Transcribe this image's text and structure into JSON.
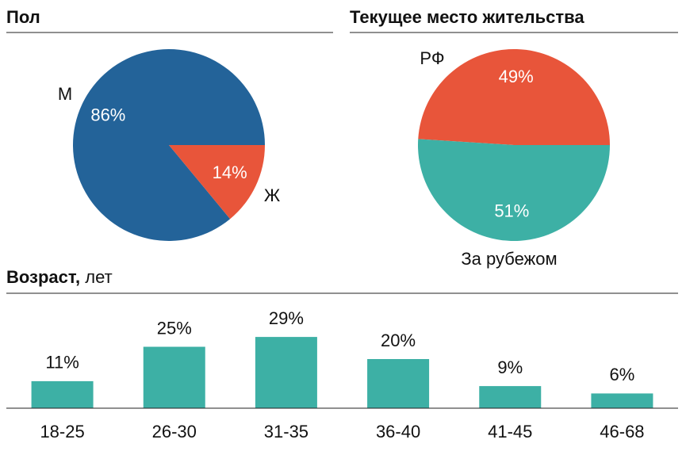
{
  "chart_data": [
    {
      "type": "pie",
      "title": "Пол",
      "categories": [
        "М",
        "Ж"
      ],
      "values": [
        86,
        14
      ],
      "value_labels": [
        "86%",
        "14%"
      ],
      "colors": [
        "#236399",
        "#e8553a"
      ]
    },
    {
      "type": "pie",
      "title": "Текущее место жительства",
      "categories": [
        "РФ",
        "За рубежом"
      ],
      "values": [
        49,
        51
      ],
      "value_labels": [
        "49%",
        "51%"
      ],
      "colors": [
        "#e8553a",
        "#3db0a5"
      ]
    },
    {
      "type": "bar",
      "title": "Возраст,",
      "subtitle": "лет",
      "categories": [
        "18-25",
        "26-30",
        "31-35",
        "36-40",
        "41-45",
        "46-68"
      ],
      "values": [
        11,
        25,
        29,
        20,
        9,
        6
      ],
      "value_labels": [
        "11%",
        "25%",
        "29%",
        "20%",
        "9%",
        "6%"
      ],
      "color": "#3db0a5"
    }
  ]
}
